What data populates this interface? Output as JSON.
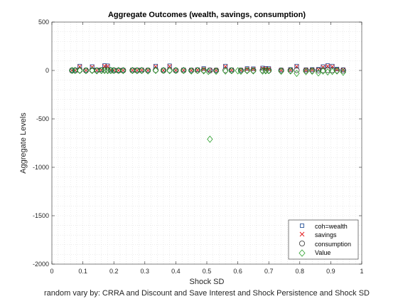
{
  "chart_data": {
    "type": "scatter",
    "title": "Aggregate Outcomes (wealth, savings, consumption)",
    "xlabel": "Shock SD",
    "ylabel": "Aggregate Levels",
    "caption": "random vary by: CRRA and Discount and Save Interest and Shock Persistence and Shock SD",
    "xlim": [
      0,
      1
    ],
    "ylim": [
      -2000,
      500
    ],
    "xticks": [
      0,
      0.1,
      0.2,
      0.3,
      0.4,
      0.5,
      0.6,
      0.7,
      0.8,
      0.9,
      1
    ],
    "yticks": [
      -2000,
      -1500,
      -1000,
      -500,
      0,
      500
    ],
    "grid": "minor dotted",
    "legend_position": "bottom-right",
    "series": [
      {
        "name": "coh=wealth",
        "marker": "square",
        "color": "#0e3f8c",
        "points": [
          [
            0.065,
            2
          ],
          [
            0.075,
            4
          ],
          [
            0.09,
            45
          ],
          [
            0.11,
            3
          ],
          [
            0.13,
            40
          ],
          [
            0.145,
            5
          ],
          [
            0.16,
            8
          ],
          [
            0.17,
            50
          ],
          [
            0.18,
            48
          ],
          [
            0.19,
            6
          ],
          [
            0.2,
            4
          ],
          [
            0.215,
            2
          ],
          [
            0.23,
            3
          ],
          [
            0.26,
            5
          ],
          [
            0.275,
            4
          ],
          [
            0.29,
            6
          ],
          [
            0.31,
            3
          ],
          [
            0.335,
            45
          ],
          [
            0.36,
            4
          ],
          [
            0.38,
            48
          ],
          [
            0.4,
            3
          ],
          [
            0.425,
            5
          ],
          [
            0.45,
            4
          ],
          [
            0.47,
            8
          ],
          [
            0.49,
            20
          ],
          [
            0.51,
            5
          ],
          [
            0.53,
            3
          ],
          [
            0.56,
            45
          ],
          [
            0.58,
            6
          ],
          [
            0.61,
            4
          ],
          [
            0.63,
            20
          ],
          [
            0.65,
            18
          ],
          [
            0.68,
            25
          ],
          [
            0.69,
            22
          ],
          [
            0.7,
            20
          ],
          [
            0.74,
            5
          ],
          [
            0.77,
            10
          ],
          [
            0.79,
            45
          ],
          [
            0.82,
            8
          ],
          [
            0.84,
            10
          ],
          [
            0.86,
            12
          ],
          [
            0.875,
            40
          ],
          [
            0.89,
            50
          ],
          [
            0.905,
            45
          ],
          [
            0.92,
            15
          ],
          [
            0.94,
            8
          ]
        ]
      },
      {
        "name": "savings",
        "marker": "x",
        "color": "#e31a1c",
        "points": [
          [
            0.065,
            1
          ],
          [
            0.075,
            2
          ],
          [
            0.09,
            40
          ],
          [
            0.11,
            2
          ],
          [
            0.13,
            35
          ],
          [
            0.145,
            3
          ],
          [
            0.16,
            5
          ],
          [
            0.17,
            45
          ],
          [
            0.18,
            44
          ],
          [
            0.19,
            4
          ],
          [
            0.2,
            2
          ],
          [
            0.215,
            1
          ],
          [
            0.23,
            2
          ],
          [
            0.26,
            3
          ],
          [
            0.275,
            2
          ],
          [
            0.29,
            4
          ],
          [
            0.31,
            2
          ],
          [
            0.335,
            40
          ],
          [
            0.36,
            2
          ],
          [
            0.38,
            42
          ],
          [
            0.4,
            2
          ],
          [
            0.425,
            3
          ],
          [
            0.45,
            2
          ],
          [
            0.47,
            5
          ],
          [
            0.49,
            15
          ],
          [
            0.51,
            3
          ],
          [
            0.53,
            2
          ],
          [
            0.56,
            40
          ],
          [
            0.58,
            4
          ],
          [
            0.61,
            2
          ],
          [
            0.63,
            15
          ],
          [
            0.65,
            14
          ],
          [
            0.68,
            20
          ],
          [
            0.69,
            18
          ],
          [
            0.7,
            15
          ],
          [
            0.74,
            3
          ],
          [
            0.77,
            6
          ],
          [
            0.79,
            40
          ],
          [
            0.82,
            5
          ],
          [
            0.84,
            6
          ],
          [
            0.86,
            8
          ],
          [
            0.875,
            35
          ],
          [
            0.89,
            45
          ],
          [
            0.905,
            40
          ],
          [
            0.92,
            10
          ],
          [
            0.94,
            5
          ]
        ]
      },
      {
        "name": "consumption",
        "marker": "circle",
        "color": "#333333",
        "points": [
          [
            0.065,
            0
          ],
          [
            0.075,
            1
          ],
          [
            0.09,
            2
          ],
          [
            0.11,
            0
          ],
          [
            0.13,
            3
          ],
          [
            0.145,
            1
          ],
          [
            0.16,
            2
          ],
          [
            0.17,
            4
          ],
          [
            0.18,
            3
          ],
          [
            0.19,
            1
          ],
          [
            0.2,
            0
          ],
          [
            0.215,
            0
          ],
          [
            0.23,
            1
          ],
          [
            0.26,
            1
          ],
          [
            0.275,
            0
          ],
          [
            0.29,
            1
          ],
          [
            0.31,
            0
          ],
          [
            0.335,
            4
          ],
          [
            0.36,
            0
          ],
          [
            0.38,
            3
          ],
          [
            0.4,
            0
          ],
          [
            0.425,
            1
          ],
          [
            0.45,
            0
          ],
          [
            0.47,
            1
          ],
          [
            0.49,
            2
          ],
          [
            0.51,
            0
          ],
          [
            0.53,
            0
          ],
          [
            0.56,
            3
          ],
          [
            0.58,
            1
          ],
          [
            0.61,
            0
          ],
          [
            0.63,
            2
          ],
          [
            0.65,
            1
          ],
          [
            0.68,
            3
          ],
          [
            0.69,
            2
          ],
          [
            0.7,
            1
          ],
          [
            0.74,
            0
          ],
          [
            0.77,
            1
          ],
          [
            0.79,
            3
          ],
          [
            0.82,
            1
          ],
          [
            0.84,
            1
          ],
          [
            0.86,
            1
          ],
          [
            0.875,
            3
          ],
          [
            0.89,
            4
          ],
          [
            0.905,
            3
          ],
          [
            0.92,
            1
          ],
          [
            0.94,
            0
          ]
        ]
      },
      {
        "name": "Value",
        "marker": "diamond",
        "color": "#2ca02c",
        "points": [
          [
            0.065,
            0
          ],
          [
            0.075,
            0
          ],
          [
            0.09,
            0
          ],
          [
            0.11,
            -2
          ],
          [
            0.13,
            0
          ],
          [
            0.145,
            -3
          ],
          [
            0.16,
            0
          ],
          [
            0.17,
            0
          ],
          [
            0.18,
            -2
          ],
          [
            0.19,
            0
          ],
          [
            0.2,
            0
          ],
          [
            0.215,
            0
          ],
          [
            0.23,
            -1
          ],
          [
            0.26,
            0
          ],
          [
            0.275,
            -2
          ],
          [
            0.29,
            0
          ],
          [
            0.31,
            -4
          ],
          [
            0.335,
            0
          ],
          [
            0.36,
            0
          ],
          [
            0.38,
            -2
          ],
          [
            0.4,
            0
          ],
          [
            0.425,
            0
          ],
          [
            0.45,
            -5
          ],
          [
            0.47,
            0
          ],
          [
            0.49,
            -3
          ],
          [
            0.505,
            -10
          ],
          [
            0.51,
            -710
          ],
          [
            0.53,
            -8
          ],
          [
            0.56,
            -6
          ],
          [
            0.58,
            -2
          ],
          [
            0.6,
            -3
          ],
          [
            0.61,
            -8
          ],
          [
            0.63,
            -2
          ],
          [
            0.65,
            -4
          ],
          [
            0.68,
            -6
          ],
          [
            0.69,
            -3
          ],
          [
            0.7,
            -2
          ],
          [
            0.74,
            -8
          ],
          [
            0.77,
            -5
          ],
          [
            0.79,
            -30
          ],
          [
            0.82,
            -12
          ],
          [
            0.84,
            -8
          ],
          [
            0.86,
            -25
          ],
          [
            0.875,
            -6
          ],
          [
            0.89,
            -15
          ],
          [
            0.905,
            -10
          ],
          [
            0.92,
            -5
          ],
          [
            0.94,
            -18
          ]
        ]
      }
    ]
  }
}
